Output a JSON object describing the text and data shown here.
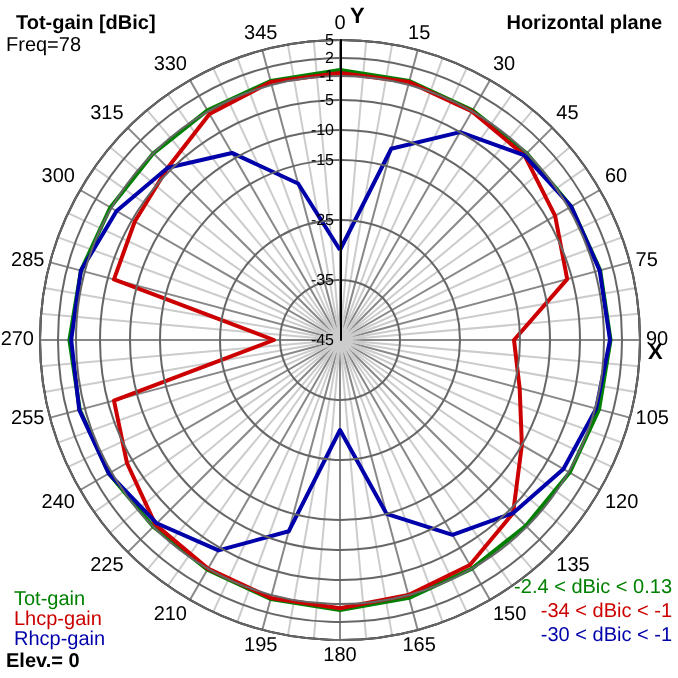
{
  "chart_data": {
    "type": "radar",
    "title": "Tot-gain [dBic]",
    "subtitle": "Horizontal plane",
    "xlabel": "X",
    "ylabel": "Y",
    "categories": [
      "0",
      "15",
      "30",
      "45",
      "60",
      "75",
      "90",
      "105",
      "120",
      "135",
      "150",
      "165",
      "180",
      "195",
      "210",
      "225",
      "240",
      "255",
      "270",
      "285",
      "300",
      "315",
      "330",
      "345"
    ],
    "series": [
      {
        "name": "Tot-gain",
        "color": "#008000",
        "values": [
          0,
          -0.3,
          -0.8,
          -1,
          -0.5,
          -0.1,
          0.1,
          -0.3,
          -0.8,
          -1.2,
          -1,
          -0.5,
          0,
          -0.3,
          -0.8,
          -1,
          -0.5,
          -0.1,
          0.1,
          -0.3,
          -0.8,
          -1,
          -0.8,
          -0.3
        ]
      },
      {
        "name": "Lhcp-gain",
        "color": "#cc0000",
        "values": [
          -0.5,
          -0.5,
          -1,
          -1.5,
          -3.6,
          -5.8,
          -16,
          -14,
          -10,
          -4.2,
          -1.7,
          -1,
          -0.3,
          -0.5,
          -1,
          -1.5,
          -4,
          -6,
          -34,
          -6,
          -5.5,
          -4.4,
          -1.5,
          -0.5
        ]
      },
      {
        "name": "Rhcp-gain",
        "color": "#0000aa",
        "values": [
          -30,
          -12,
          -5,
          -1.5,
          -0.5,
          -0.2,
          0,
          -0.8,
          -2,
          -4.2,
          -7.5,
          -15,
          -30,
          -12,
          -4.5,
          -1.8,
          -0.5,
          0,
          -0.2,
          -0.3,
          -2,
          -4.4,
          -9,
          -18
        ]
      }
    ],
    "ylim": [
      -45,
      5
    ],
    "yticks": [
      5,
      2,
      -1,
      -5,
      -10,
      -15,
      -25,
      -35,
      -45
    ],
    "grid": true,
    "legend": "bottom left",
    "marker": "none",
    "line_style": "solid",
    "annotations": [
      "Freq=78",
      "Elev.= 0",
      "-2.4 < dBic < 0.13",
      "-34 < dBic < -1",
      "-30 < dBic < -1"
    ]
  }
}
